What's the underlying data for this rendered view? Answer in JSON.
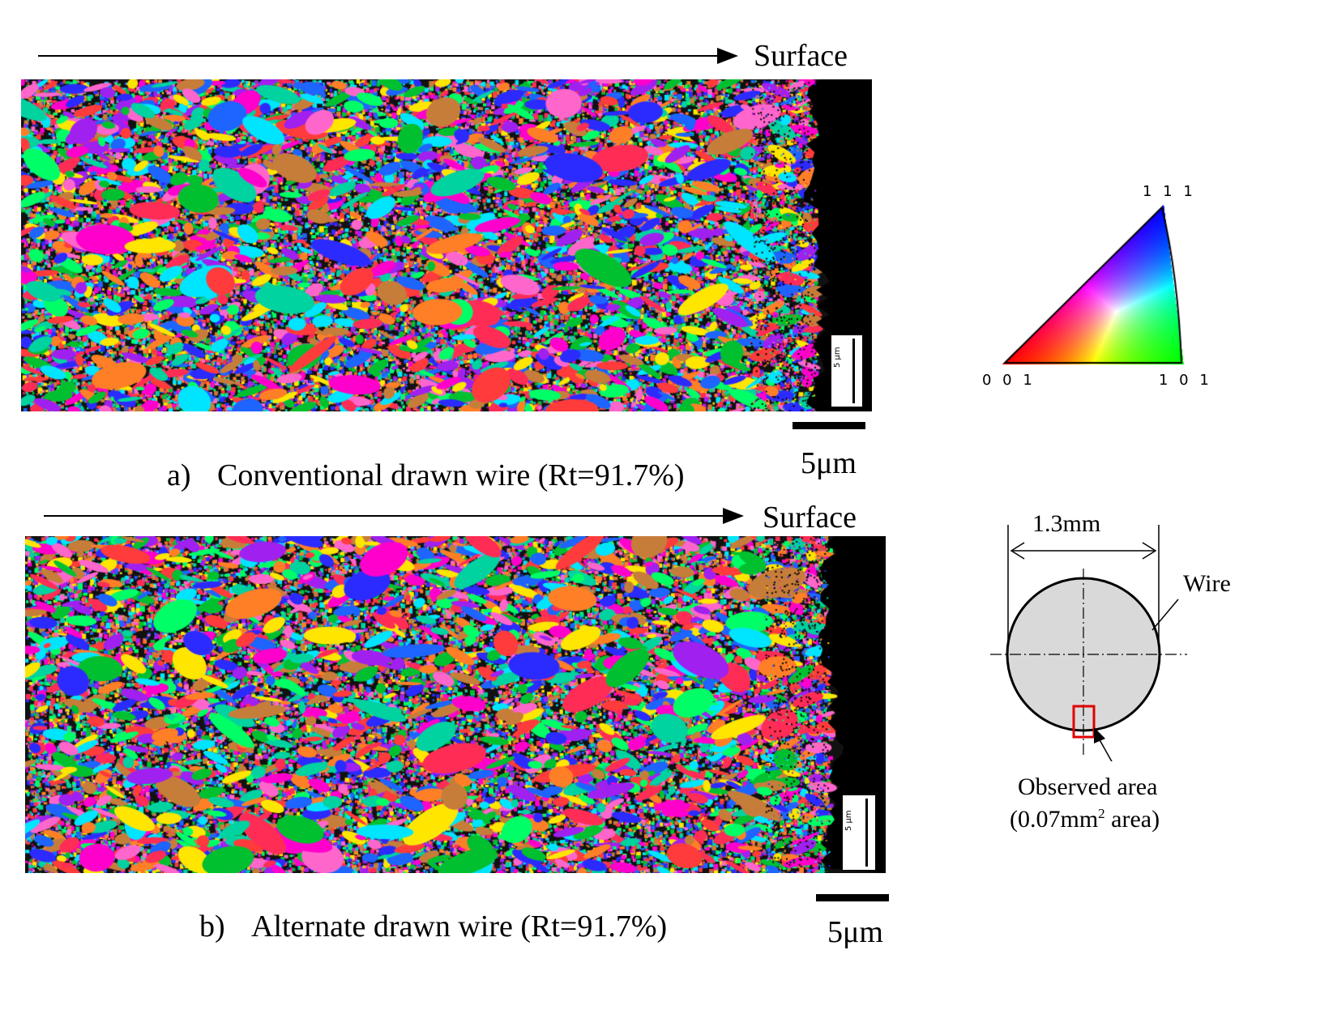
{
  "panels": [
    {
      "id": "a",
      "direction_label": "Surface",
      "caption_letter": "a)",
      "caption_text": "Conventional drawn wire (Rt=91.7%)",
      "scale_label": "5μm",
      "inset_scale_label": "5 μm"
    },
    {
      "id": "b",
      "direction_label": "Surface",
      "caption_letter": "b)",
      "caption_text": "Alternate drawn wire (Rt=91.7%)",
      "scale_label": "5μm",
      "inset_scale_label": "5 μm"
    }
  ],
  "ipf_key": {
    "corner_top": "1 1 1",
    "corner_left": "0 0 1",
    "corner_right": "1 0 1"
  },
  "wire_schematic": {
    "diameter_label": "1.3mm",
    "wire_label": "Wire",
    "observed_label": "Observed area",
    "area_label_prefix": "(0.07mm",
    "area_label_sup": "2",
    "area_label_suffix": " area)",
    "wire_fill": "#d9d9d9",
    "marker_color": "#e00000"
  },
  "colors": {
    "grain_palette": [
      "#ff2d55",
      "#ff00cc",
      "#ff3b3b",
      "#ff7f27",
      "#c77d3a",
      "#ffe600",
      "#00ff66",
      "#00d2a0",
      "#00e5ff",
      "#1e64ff",
      "#2b2bff",
      "#a020f0",
      "#ff66cc",
      "#00c030"
    ]
  }
}
